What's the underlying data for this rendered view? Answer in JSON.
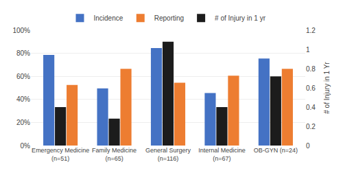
{
  "chart_data": {
    "type": "bar",
    "categories": [
      "Emergency Medicine\n(n=51)",
      "Family Medicine\n(n=65)",
      "General Surgery\n(n=116)",
      "Internal Medicine\n(n=67)",
      "OB-GYN (n=24)"
    ],
    "series": [
      {
        "name": "Incidence",
        "color": "#4472C4",
        "values": [
          0.785,
          0.495,
          0.845,
          0.455,
          0.755
        ]
      },
      {
        "name": "Reporting",
        "color": "#ED7D31",
        "values": [
          0.525,
          0.665,
          0.545,
          0.605,
          0.665
        ]
      },
      {
        "name": "# of Injury in 1 yr",
        "color": "#1C1C1C",
        "values": [
          0.4,
          0.28,
          1.08,
          0.4,
          0.72
        ],
        "axis": "y2"
      }
    ],
    "ylim": [
      0,
      1.0
    ],
    "yticks": [
      {
        "value": 0.0,
        "label": "0%"
      },
      {
        "value": 0.2,
        "label": "20%"
      },
      {
        "value": 0.4,
        "label": "40%"
      },
      {
        "value": 0.6,
        "label": "60%"
      },
      {
        "value": 0.8,
        "label": "80%"
      },
      {
        "value": 1.0,
        "label": "100%"
      }
    ],
    "y2lim": [
      0,
      1.2
    ],
    "y2ticks": [
      0,
      0.2,
      0.4,
      0.6,
      0.8,
      1,
      1.2
    ],
    "y2label": "# of Injury in 1 Yr",
    "grid": true,
    "legend": "top"
  }
}
